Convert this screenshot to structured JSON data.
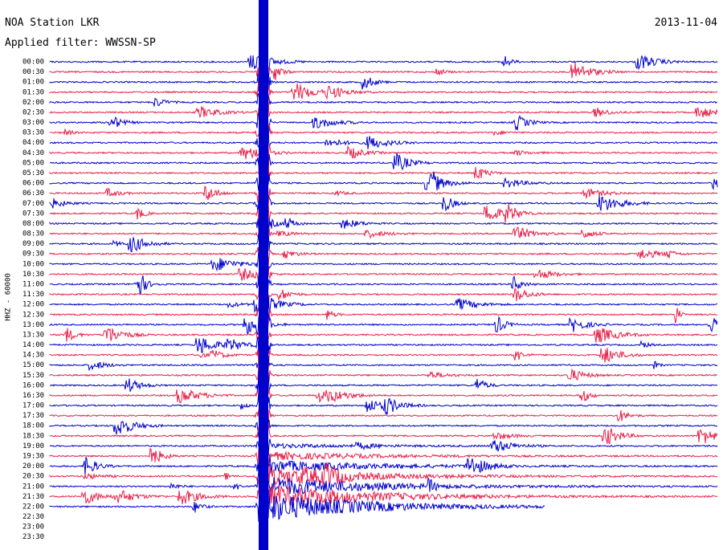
{
  "header": {
    "station": "NOA Station LKR",
    "date": "2013-11-04",
    "filter": "Applied filter: WWSSN-SP"
  },
  "axis_label": "HHZ - 60000",
  "rows": [
    "00:00",
    "00:30",
    "01:00",
    "01:30",
    "02:00",
    "02:30",
    "03:00",
    "03:30",
    "04:00",
    "04:30",
    "05:00",
    "05:30",
    "06:00",
    "06:30",
    "07:00",
    "07:30",
    "08:00",
    "08:30",
    "09:00",
    "09:30",
    "10:00",
    "10:30",
    "11:00",
    "11:30",
    "12:00",
    "12:30",
    "13:00",
    "13:30",
    "14:00",
    "14:30",
    "15:00",
    "15:30",
    "16:00",
    "16:30",
    "17:00",
    "17:30",
    "18:00",
    "18:30",
    "19:00",
    "19:30",
    "20:00",
    "20:30",
    "21:00",
    "21:30",
    "22:00",
    "22:30",
    "23:00",
    "23:30"
  ]
}
